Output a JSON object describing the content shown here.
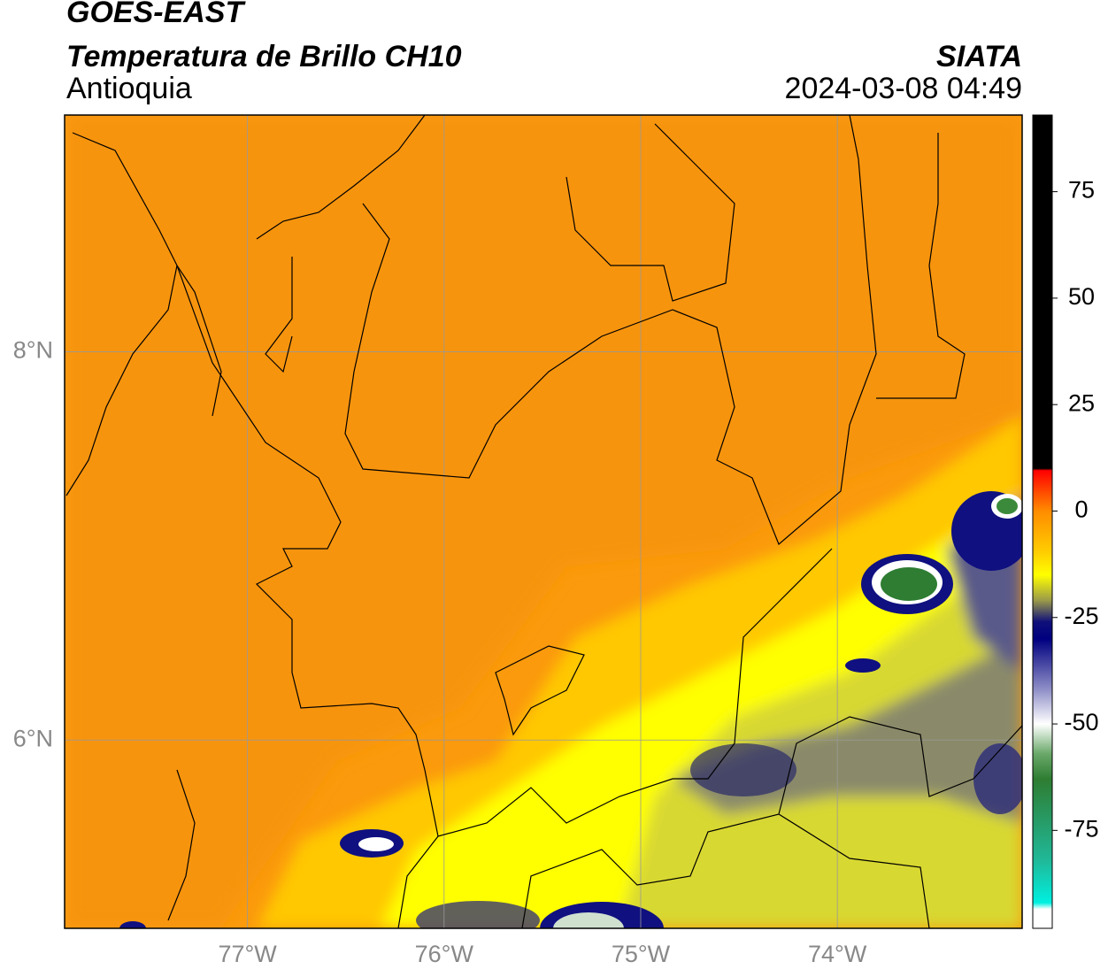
{
  "header": {
    "title": "GOES-EAST",
    "subtitle": "Temperatura de Brillo CH10",
    "region": "Antioquia",
    "source": "SIATA",
    "timestamp": "2024-03-08 04:49"
  },
  "map": {
    "xlim": [
      -77.93,
      -73.06
    ],
    "ylim": [
      5.03,
      9.22
    ],
    "xticks": [
      {
        "value": -77,
        "label": "77°W"
      },
      {
        "value": -76,
        "label": "76°W"
      },
      {
        "value": -75,
        "label": "75°W"
      },
      {
        "value": -74,
        "label": "74°W"
      }
    ],
    "yticks": [
      {
        "value": 8,
        "label": "8°N"
      },
      {
        "value": 6,
        "label": "6°N"
      }
    ],
    "grid": true
  },
  "colorbar": {
    "lim": [
      -98,
      93
    ],
    "ticks": [
      75,
      50,
      25,
      0,
      -25,
      -50,
      -75
    ],
    "stops": [
      {
        "value": 93,
        "color": "#000000"
      },
      {
        "value": 10,
        "color": "#000000"
      },
      {
        "value": 9.5,
        "color": "#ff0000"
      },
      {
        "value": 0,
        "color": "#ff8c00"
      },
      {
        "value": -10,
        "color": "#ffd000"
      },
      {
        "value": -15,
        "color": "#ffff00"
      },
      {
        "value": -21,
        "color": "#9a9a4a"
      },
      {
        "value": -26,
        "color": "#10107a"
      },
      {
        "value": -30,
        "color": "#000080"
      },
      {
        "value": -42,
        "color": "#9090c8"
      },
      {
        "value": -50,
        "color": "#ffffff"
      },
      {
        "value": -57,
        "color": "#6aa86a"
      },
      {
        "value": -63,
        "color": "#2e7d32"
      },
      {
        "value": -82,
        "color": "#20b898"
      },
      {
        "value": -92,
        "color": "#00f0e0"
      },
      {
        "value": -93.5,
        "color": "#ffffff"
      },
      {
        "value": -98,
        "color": "#ffffff"
      }
    ]
  }
}
